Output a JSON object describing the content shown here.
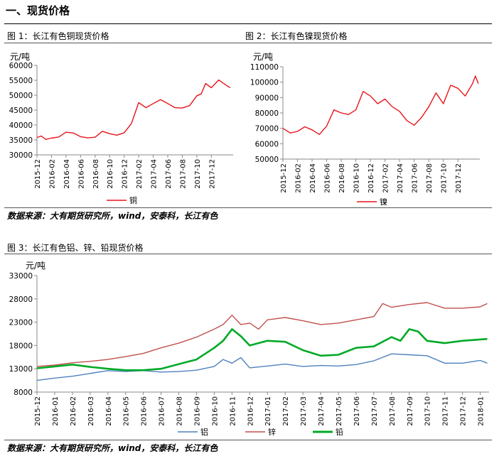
{
  "section": {
    "title": "一、现货价格"
  },
  "figures": {
    "fig1_title": "图 1：长江有色铜现货价格",
    "fig2_title": "图 2：长江有色镍现货价格",
    "fig3_title": "图 3：长江有色铝、锌、铅现货价格"
  },
  "sources": {
    "top": "数据来源：大有期货研究所，wind，安泰科，长江有色",
    "bottom": "数据来源：大有期货研究所，wind，安泰科，长江有色"
  },
  "chart_data": [
    {
      "type": "line",
      "unit": "元/吨",
      "ylim": [
        30000,
        60000
      ],
      "yticks": [
        30000,
        35000,
        40000,
        45000,
        50000,
        55000,
        60000
      ],
      "x_ticks": [
        "2015-12",
        "2016-02",
        "2016-04",
        "2016-06",
        "2016-08",
        "2016-10",
        "2016-12",
        "2017-02",
        "2017-04",
        "2017-06",
        "2017-08",
        "2017-10",
        "2017-12"
      ],
      "x_range": [
        0,
        13.5
      ],
      "legend": "bottom",
      "series": [
        {
          "name": "铜",
          "color": "#e8141a",
          "x": [
            0,
            0.3,
            0.6,
            1,
            1.5,
            2,
            2.5,
            3,
            3.5,
            4,
            4.5,
            5,
            5.5,
            6,
            6.5,
            7,
            7.5,
            8,
            8.5,
            9,
            9.5,
            10,
            10.5,
            11,
            11.3,
            11.6,
            12,
            12.5,
            13,
            13.3
          ],
          "y": [
            35800,
            36300,
            35200,
            35600,
            36000,
            37600,
            37300,
            36100,
            35700,
            35900,
            37900,
            37100,
            36600,
            37400,
            40500,
            47500,
            45800,
            47200,
            48500,
            47200,
            45800,
            45700,
            46500,
            49800,
            50400,
            53900,
            52500,
            55100,
            53400,
            52500
          ]
        }
      ]
    },
    {
      "type": "line",
      "unit": "元/吨",
      "ylim": [
        50000,
        110000
      ],
      "yticks": [
        50000,
        60000,
        70000,
        80000,
        90000,
        100000,
        110000
      ],
      "x_ticks": [
        "2015-12",
        "2016-02",
        "2016-04",
        "2016-06",
        "2016-08",
        "2016-10",
        "2016-12",
        "2017-02",
        "2017-04",
        "2017-06",
        "2017-08",
        "2017-10",
        "2017-12"
      ],
      "x_range": [
        0,
        13.5
      ],
      "legend": "bottom",
      "series": [
        {
          "name": "镍",
          "color": "#e8141a",
          "x": [
            0,
            0.5,
            1,
            1.5,
            2,
            2.5,
            3,
            3.5,
            4,
            4.5,
            5,
            5.5,
            6,
            6.5,
            7,
            7.5,
            8,
            8.5,
            9,
            9.5,
            10,
            10.5,
            11,
            11.5,
            12,
            12.5,
            13,
            13.2,
            13.4
          ],
          "y": [
            70000,
            67000,
            68000,
            71000,
            69000,
            66000,
            71500,
            82000,
            80000,
            79000,
            82000,
            94000,
            91000,
            86000,
            89000,
            84000,
            81000,
            75000,
            72000,
            77000,
            84000,
            93000,
            86000,
            98000,
            96000,
            91000,
            99000,
            104000,
            99000
          ]
        }
      ]
    },
    {
      "type": "line",
      "unit": "元/吨",
      "ylim": [
        8000,
        33000
      ],
      "yticks": [
        8000,
        13000,
        18000,
        23000,
        28000,
        33000
      ],
      "x_ticks": [
        "2015-12",
        "2016-01",
        "2016-02",
        "2016-03",
        "2016-04",
        "2016-05",
        "2016-06",
        "2016-07",
        "2016-08",
        "2016-09",
        "2016-10",
        "2016-11",
        "2016-12",
        "2017-01",
        "2017-02",
        "2017-03",
        "2017-04",
        "2017-05",
        "2017-06",
        "2017-07",
        "2017-08",
        "2017-09",
        "2017-10",
        "2017-11",
        "2017-12",
        "2018-01"
      ],
      "x_range": [
        0,
        25.5
      ],
      "legend": "bottom",
      "series": [
        {
          "name": "铝",
          "color": "#4f81bd",
          "x": [
            0,
            1,
            2,
            3,
            4,
            5,
            6,
            7,
            8,
            9,
            10,
            10.5,
            11,
            11.5,
            12,
            13,
            14,
            15,
            16,
            17,
            18,
            19,
            20,
            21,
            22,
            23,
            24,
            25,
            25.4
          ],
          "y": [
            10500,
            11000,
            11400,
            12000,
            12600,
            12400,
            12600,
            12300,
            12400,
            12700,
            13500,
            15000,
            14200,
            15400,
            13200,
            13600,
            14000,
            13500,
            13700,
            13600,
            13900,
            14700,
            16200,
            16000,
            15800,
            14200,
            14200,
            14800,
            14200
          ]
        },
        {
          "name": "锌",
          "color": "#c0504d",
          "x": [
            0,
            1,
            2,
            3,
            4,
            5,
            6,
            7,
            8,
            9,
            10,
            10.5,
            11,
            11.5,
            12,
            12.5,
            13,
            14,
            15,
            16,
            17,
            18,
            19,
            19.5,
            20,
            21,
            22,
            23,
            24,
            25,
            25.4
          ],
          "y": [
            13500,
            13800,
            14300,
            14600,
            15000,
            15600,
            16300,
            17500,
            18500,
            19800,
            21500,
            22500,
            24500,
            22500,
            22800,
            21500,
            23500,
            24000,
            23300,
            22500,
            22800,
            23500,
            24200,
            27000,
            26200,
            26800,
            27200,
            26000,
            26000,
            26300,
            27000
          ]
        },
        {
          "name": "铅",
          "color": "#00aa26",
          "x": [
            0,
            1,
            2,
            3,
            4,
            5,
            6,
            7,
            8,
            9,
            10,
            10.5,
            11,
            11.5,
            12,
            13,
            14,
            15,
            16,
            17,
            18,
            19,
            20,
            20.5,
            21,
            21.5,
            22,
            23,
            24,
            25,
            25.4
          ],
          "y": [
            13100,
            13500,
            13900,
            13400,
            13000,
            12700,
            12700,
            13000,
            14000,
            15000,
            17500,
            19000,
            21500,
            20000,
            18000,
            19000,
            18800,
            17000,
            15800,
            16000,
            17500,
            17800,
            19800,
            19000,
            21500,
            21000,
            19000,
            18500,
            19000,
            19300,
            19400
          ]
        }
      ]
    }
  ]
}
